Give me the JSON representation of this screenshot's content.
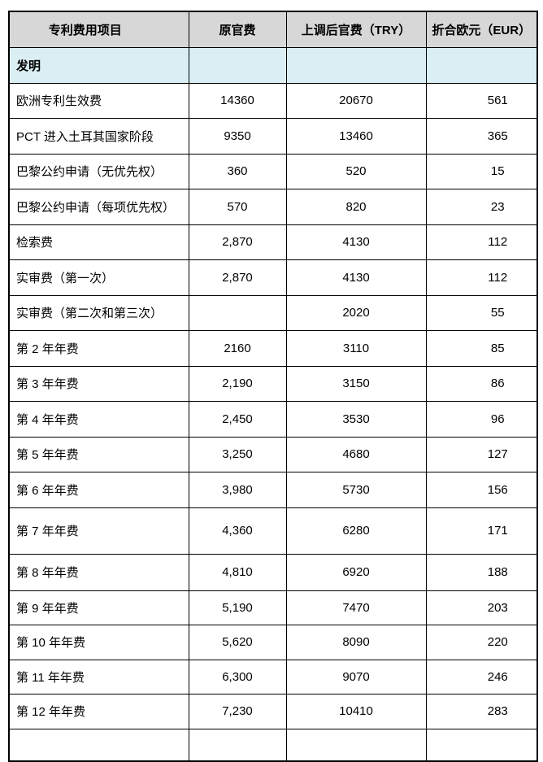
{
  "table": {
    "columns": [
      {
        "label": "专利费用项目"
      },
      {
        "label": "原官费"
      },
      {
        "label": "上调后官费（TRY）"
      },
      {
        "label": "折合欧元（EUR）"
      }
    ],
    "section": {
      "label": "发明"
    },
    "rows": [
      {
        "item": "欧洲专利生效费",
        "original_fee": "14360",
        "new_fee_try": "20670",
        "eur": "561"
      },
      {
        "item": "PCT 进入土耳其国家阶段",
        "original_fee": "9350",
        "new_fee_try": "13460",
        "eur": "365"
      },
      {
        "item": "巴黎公约申请（无优先权）",
        "original_fee": "360",
        "new_fee_try": "520",
        "eur": "15"
      },
      {
        "item": "巴黎公约申请（每项优先权）",
        "original_fee": "570",
        "new_fee_try": "820",
        "eur": "23"
      },
      {
        "item": "检索费",
        "original_fee": "2,870",
        "new_fee_try": "4130",
        "eur": "112"
      },
      {
        "item": "实审费（第一次）",
        "original_fee": "2,870",
        "new_fee_try": "4130",
        "eur": "112"
      },
      {
        "item": "实审费（第二次和第三次）",
        "original_fee": "",
        "new_fee_try": "2020",
        "eur": "55"
      },
      {
        "item": "第 2 年年费",
        "original_fee": "2160",
        "new_fee_try": "3110",
        "eur": "85"
      },
      {
        "item": "第 3 年年费",
        "original_fee": "2,190",
        "new_fee_try": "3150",
        "eur": "86"
      },
      {
        "item": "第 4 年年费",
        "original_fee": "2,450",
        "new_fee_try": "3530",
        "eur": "96"
      },
      {
        "item": "第 5 年年费",
        "original_fee": "3,250",
        "new_fee_try": "4680",
        "eur": "127"
      },
      {
        "item": "第 6 年年费",
        "original_fee": "3,980",
        "new_fee_try": "5730",
        "eur": "156"
      },
      {
        "item": "第 7 年年费",
        "original_fee": "4,360",
        "new_fee_try": "6280",
        "eur": "171"
      },
      {
        "item": "第 8 年年费",
        "original_fee": "4,810",
        "new_fee_try": "6920",
        "eur": "188"
      },
      {
        "item": "第 9 年年费",
        "original_fee": "5,190",
        "new_fee_try": "7470",
        "eur": "203"
      },
      {
        "item": "第 10 年年费",
        "original_fee": "5,620",
        "new_fee_try": "8090",
        "eur": "220"
      },
      {
        "item": "第 11 年年费",
        "original_fee": "6,300",
        "new_fee_try": "9070",
        "eur": "246"
      },
      {
        "item": "第 12 年年费",
        "original_fee": "7,230",
        "new_fee_try": "10410",
        "eur": "283"
      }
    ],
    "colors": {
      "header_bg": "#d7d7d7",
      "section_bg": "#daeef3",
      "border": "#000000"
    }
  }
}
